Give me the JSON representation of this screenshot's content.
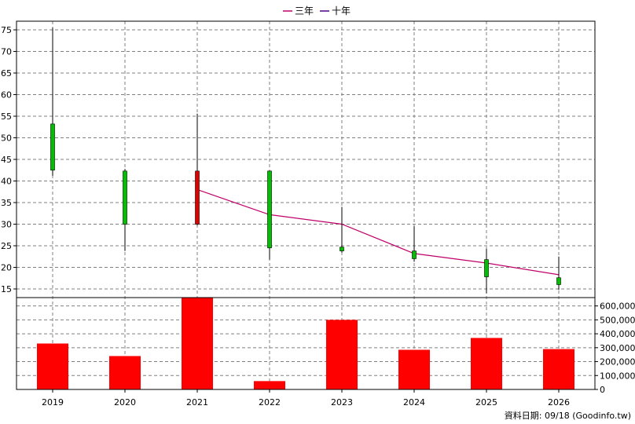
{
  "legend": [
    {
      "label": "三年",
      "color": "#c0006a"
    },
    {
      "label": "十年",
      "color": "#4b0082"
    }
  ],
  "credit": "資料日期: 09/18  (Goodinfo.tw)",
  "chart_data": {
    "type": "candlestick+line+bar",
    "categories": [
      "2019",
      "2020",
      "2021",
      "2022",
      "2023",
      "2024",
      "2025",
      "2026"
    ],
    "price_axis": {
      "ylim": [
        13,
        77
      ],
      "ticks": [
        15,
        20,
        25,
        30,
        35,
        40,
        45,
        50,
        55,
        60,
        65,
        70,
        75
      ],
      "position": "left"
    },
    "volume_axis": {
      "ylim": [
        0,
        660000
      ],
      "ticks": [
        0,
        100000,
        200000,
        300000,
        400000,
        500000,
        600000
      ],
      "tick_labels": [
        "0",
        "100,000",
        "200,000",
        "300,000",
        "400,000",
        "500,000",
        "600,000"
      ],
      "position": "right"
    },
    "candles": [
      {
        "year": "2019",
        "open": 42.5,
        "close": 53.2,
        "high": 75.5,
        "low": 41.2,
        "color": "#00c000"
      },
      {
        "year": "2020",
        "open": 30.0,
        "close": 42.3,
        "high": 42.8,
        "low": 23.8,
        "color": "#00c000"
      },
      {
        "year": "2021",
        "open": 42.3,
        "close": 30.0,
        "high": 55.6,
        "low": 29.7,
        "color": "#e00000"
      },
      {
        "year": "2022",
        "open": 24.5,
        "close": 42.3,
        "high": 42.4,
        "low": 21.8,
        "color": "#00c000"
      },
      {
        "year": "2023",
        "open": 23.8,
        "close": 24.7,
        "high": 34.0,
        "low": 23.4,
        "color": "#00c000"
      },
      {
        "year": "2024",
        "open": 22.0,
        "close": 23.8,
        "high": 29.5,
        "low": 21.3,
        "color": "#00c000"
      },
      {
        "year": "2025",
        "open": 17.8,
        "close": 21.8,
        "high": 24.3,
        "low": 14.0,
        "color": "#00c000"
      },
      {
        "year": "2026",
        "open": 16.0,
        "close": 17.6,
        "high": 22.5,
        "low": 14.8,
        "color": "#00c000"
      }
    ],
    "series": [
      {
        "name": "三年",
        "type": "line",
        "color": "#c0006a",
        "x": [
          "2021",
          "2022",
          "2023",
          "2024",
          "2025",
          "2026"
        ],
        "values": [
          38.0,
          32.2,
          30.0,
          23.2,
          21.0,
          18.3
        ]
      },
      {
        "name": "十年",
        "type": "line",
        "color": "#4b0082",
        "x": [],
        "values": []
      }
    ],
    "volume": {
      "color": "#ff0000",
      "values": [
        330000,
        240000,
        665000,
        60000,
        500000,
        285000,
        370000,
        290000
      ]
    },
    "grid": true,
    "legend_position": "top-center"
  }
}
